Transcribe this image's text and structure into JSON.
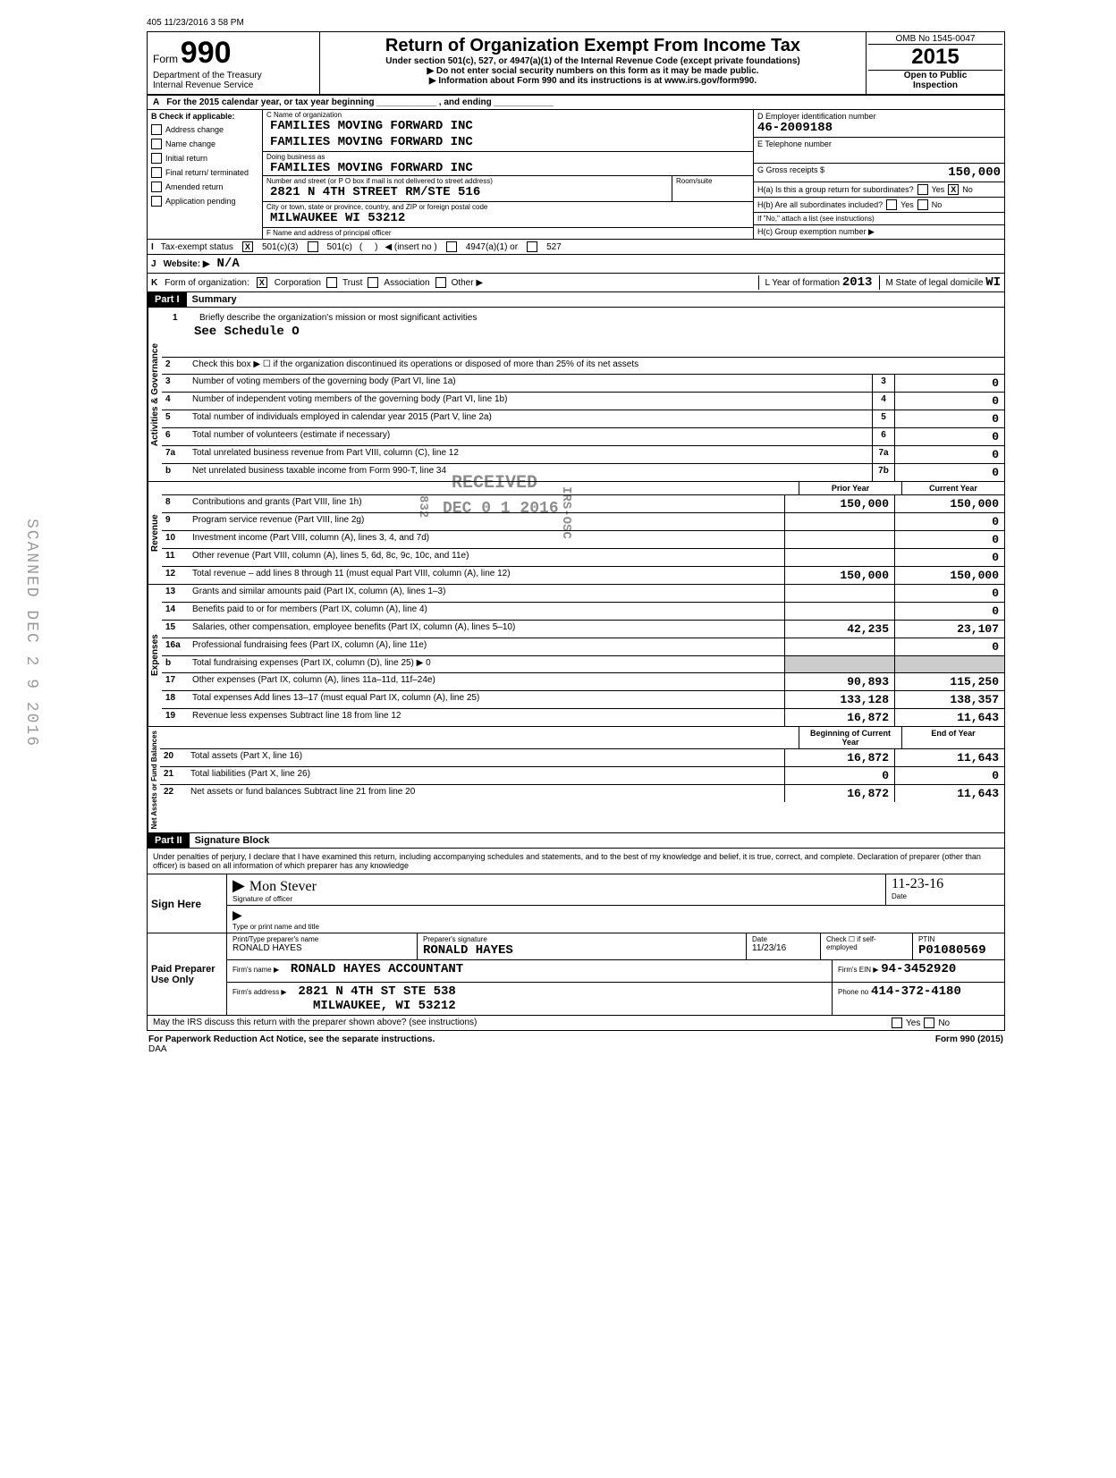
{
  "top_stamp": "405 11/23/2016 3 58 PM",
  "form": {
    "number": "990",
    "form_word": "Form",
    "dept": "Department of the Treasury",
    "irs": "Internal Revenue Service",
    "title": "Return of Organization Exempt From Income Tax",
    "subtitle1": "Under section 501(c), 527, or 4947(a)(1) of the Internal Revenue Code (except private foundations)",
    "subtitle2": "▶ Do not enter social security numbers on this form as it may be made public.",
    "subtitle3": "▶ Information about Form 990 and its instructions is at www.irs.gov/form990.",
    "omb": "OMB No 1545-0047",
    "year": "2015",
    "open": "Open to Public",
    "inspection": "Inspection"
  },
  "row_a": "For the 2015 calendar year, or tax year beginning ____________ , and ending ____________",
  "checkboxes_b": {
    "label": "Check if applicable:",
    "items": [
      "Address change",
      "Name change",
      "Initial return",
      "Final return/ terminated",
      "Amended return",
      "Application pending"
    ]
  },
  "org": {
    "name_label": "C  Name of organization",
    "name1": "FAMILIES MOVING FORWARD INC",
    "name2": "FAMILIES MOVING FORWARD INC",
    "dba_label": "Doing business as",
    "dba": "FAMILIES MOVING FORWARD INC",
    "addr_label": "Number and street (or P O box if mail is not delivered to street address)",
    "addr": "2821 N 4TH STREET RM/STE 516",
    "room_label": "Room/suite",
    "city_label": "City or town, state or province, country, and ZIP or foreign postal code",
    "city": "MILWAUKEE          WI 53212",
    "officer_label": "F  Name and address of principal officer"
  },
  "right_box": {
    "ein_label": "D  Employer identification number",
    "ein": "46-2009188",
    "phone_label": "E  Telephone number",
    "gross_label": "G  Gross receipts $",
    "gross": "150,000",
    "h_a_label": "H(a) Is this a group return for subordinates?",
    "h_a_yes": "Yes",
    "h_a_no": "No",
    "h_a_no_checked": "X",
    "h_b_label": "H(b) Are all subordinates included?",
    "h_b_yes": "Yes",
    "h_b_no": "No",
    "h_note": "If \"No,\" attach a list (see instructions)",
    "h_c_label": "H(c) Group exemption number ▶"
  },
  "status": {
    "label": "Tax-exempt status",
    "c3_checked": "X",
    "c3": "501(c)(3)",
    "c": "501(c)",
    "insert": "◀ (insert no )",
    "a1": "4947(a)(1) or",
    "s527": "527"
  },
  "website": {
    "label": "Website: ▶",
    "val": "N/A"
  },
  "formorg": {
    "label": "Form of organization:",
    "corp_checked": "X",
    "items": [
      "Corporation",
      "Trust",
      "Association",
      "Other ▶"
    ],
    "year_label": "L  Year of formation",
    "year": "2013",
    "state_label": "M  State of legal domicile",
    "state": "WI"
  },
  "part1": {
    "header": "Part I",
    "title": "Summary",
    "line1_label": "Briefly describe the organization's mission or most significant activities",
    "line1_val": "See Schedule O",
    "line2": "Check this box ▶ ☐  if the organization discontinued its operations or disposed of more than 25% of its net assets",
    "gov_label": "Activities & Governance",
    "rev_label": "Revenue",
    "exp_label": "Expenses",
    "net_label": "Net Assets or Fund Balances",
    "single_col_lines": [
      {
        "n": "3",
        "t": "Number of voting members of the governing body (Part VI, line 1a)",
        "box": "3",
        "v": "0"
      },
      {
        "n": "4",
        "t": "Number of independent voting members of the governing body (Part VI, line 1b)",
        "box": "4",
        "v": "0"
      },
      {
        "n": "5",
        "t": "Total number of individuals employed in calendar year 2015 (Part V, line 2a)",
        "box": "5",
        "v": "0"
      },
      {
        "n": "6",
        "t": "Total number of volunteers (estimate if necessary)",
        "box": "6",
        "v": "0"
      },
      {
        "n": "7a",
        "t": "Total unrelated business revenue from Part VIII, column (C), line 12",
        "box": "7a",
        "v": "0"
      },
      {
        "n": "b",
        "t": "Net unrelated business taxable income from Form 990-T, line 34",
        "box": "7b",
        "v": "0"
      }
    ],
    "col_headers": {
      "prior": "Prior Year",
      "current": "Current Year"
    },
    "revenue_lines": [
      {
        "n": "8",
        "t": "Contributions and grants (Part VIII, line 1h)",
        "p": "150,000",
        "c": "150,000"
      },
      {
        "n": "9",
        "t": "Program service revenue (Part VIII, line 2g)",
        "p": "",
        "c": "0"
      },
      {
        "n": "10",
        "t": "Investment income (Part VIII, column (A), lines 3, 4, and 7d)",
        "p": "",
        "c": "0"
      },
      {
        "n": "11",
        "t": "Other revenue (Part VIII, column (A), lines 5, 6d, 8c, 9c, 10c, and 11e)",
        "p": "",
        "c": "0"
      },
      {
        "n": "12",
        "t": "Total revenue – add lines 8 through 11 (must equal Part VIII, column (A), line 12)",
        "p": "150,000",
        "c": "150,000"
      }
    ],
    "expense_lines": [
      {
        "n": "13",
        "t": "Grants and similar amounts paid (Part IX, column (A), lines 1–3)",
        "p": "",
        "c": "0"
      },
      {
        "n": "14",
        "t": "Benefits paid to or for members (Part IX, column (A), line 4)",
        "p": "",
        "c": "0"
      },
      {
        "n": "15",
        "t": "Salaries, other compensation, employee benefits (Part IX, column (A), lines 5–10)",
        "p": "42,235",
        "c": "23,107"
      },
      {
        "n": "16a",
        "t": "Professional fundraising fees (Part IX, column (A), line 11e)",
        "p": "",
        "c": "0"
      },
      {
        "n": "b",
        "t": "Total fundraising expenses (Part IX, column (D), line 25) ▶              0",
        "p": "shaded",
        "c": "shaded"
      },
      {
        "n": "17",
        "t": "Other expenses (Part IX, column (A), lines 11a–11d, 11f–24e)",
        "p": "90,893",
        "c": "115,250"
      },
      {
        "n": "18",
        "t": "Total expenses  Add lines 13–17 (must equal Part IX, column (A), line 25)",
        "p": "133,128",
        "c": "138,357"
      },
      {
        "n": "19",
        "t": "Revenue less expenses  Subtract line 18 from line 12",
        "p": "16,872",
        "c": "11,643"
      }
    ],
    "net_headers": {
      "beg": "Beginning of Current Year",
      "end": "End of Year"
    },
    "net_lines": [
      {
        "n": "20",
        "t": "Total assets (Part X, line 16)",
        "p": "16,872",
        "c": "11,643"
      },
      {
        "n": "21",
        "t": "Total liabilities (Part X, line 26)",
        "p": "0",
        "c": "0"
      },
      {
        "n": "22",
        "t": "Net assets or fund balances  Subtract line 21 from line 20",
        "p": "16,872",
        "c": "11,643"
      }
    ]
  },
  "stamps": {
    "received": "RECEIVED",
    "date": "DEC 0 1 2016",
    "code": "832",
    "irs": "IRS-OSC",
    "scanned": "SCANNED DEC 2 9 2016"
  },
  "part2": {
    "header": "Part II",
    "title": "Signature Block",
    "penalties": "Under penalties of perjury, I declare that I have examined this return, including accompanying schedules and statements, and to the best of my knowledge and belief, it is true, correct, and complete. Declaration of preparer (other than officer) is based on all information of which preparer has any knowledge",
    "sign_here": "Sign Here",
    "sig_officer_label": "Signature of officer",
    "sig_date_label": "Date",
    "sig_date": "11-23-16",
    "print_label": "Type or print name and title",
    "paid_label": "Paid Preparer Use Only",
    "prep_name_label": "Print/Type preparer's name",
    "prep_name": "RONALD HAYES",
    "prep_sig_label": "Preparer's signature",
    "prep_sig": "RONALD HAYES",
    "prep_date_label": "Date",
    "prep_date": "11/23/16",
    "check_if": "Check ☐ if self-employed",
    "ptin_label": "PTIN",
    "ptin": "P01080569",
    "firm_name_label": "Firm's name ▶",
    "firm_name": "RONALD HAYES ACCOUNTANT",
    "firm_ein_label": "Firm's EIN ▶",
    "firm_ein": "94-3452920",
    "firm_addr_label": "Firm's address ▶",
    "firm_addr1": "2821 N 4TH ST STE 538",
    "firm_addr2": "MILWAUKEE, WI   53212",
    "phone_label": "Phone no",
    "phone": "414-372-4180",
    "discuss": "May the IRS discuss this return with the preparer shown above? (see instructions)",
    "discuss_yes": "Yes",
    "discuss_no": "No"
  },
  "footer": {
    "left": "For Paperwork Reduction Act Notice, see the separate instructions.",
    "daa": "DAA",
    "right": "Form 990 (2015)"
  }
}
